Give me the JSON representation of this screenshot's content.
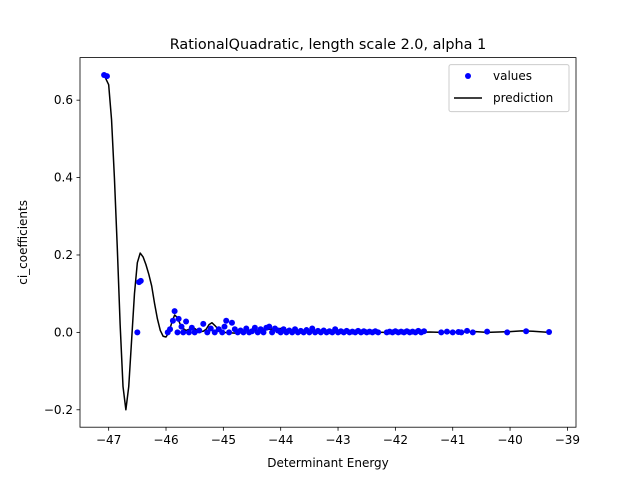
{
  "chart_data": {
    "type": "scatter",
    "title": "RationalQuadratic, length scale 2.0, alpha 1",
    "xlabel": "Determinant Energy",
    "ylabel": "ci_coefficients",
    "xlim": [
      -47.5,
      -38.85
    ],
    "ylim": [
      -0.245,
      0.71
    ],
    "grid": false,
    "legend_position": "top-right",
    "x_ticks": [
      -47,
      -46,
      -45,
      -44,
      -43,
      -42,
      -41,
      -40,
      -39
    ],
    "x_tick_labels": [
      "−47",
      "−46",
      "−45",
      "−44",
      "−43",
      "−42",
      "−41",
      "−40",
      "−39"
    ],
    "y_ticks": [
      -0.2,
      0.0,
      0.2,
      0.4,
      0.6
    ],
    "y_tick_labels": [
      "−0.2",
      "0.0",
      "0.2",
      "0.4",
      "0.6"
    ],
    "series": [
      {
        "name": "values",
        "kind": "points",
        "color": "#0000ff",
        "x": [
          -47.08,
          -47.03,
          -46.5,
          -46.47,
          -46.44,
          -45.97,
          -45.93,
          -45.88,
          -45.85,
          -45.8,
          -45.78,
          -45.73,
          -45.7,
          -45.65,
          -45.6,
          -45.55,
          -45.5,
          -45.42,
          -45.35,
          -45.28,
          -45.22,
          -45.15,
          -45.08,
          -45.02,
          -44.98,
          -44.95,
          -44.9,
          -44.85,
          -44.8,
          -44.75,
          -44.7,
          -44.65,
          -44.6,
          -44.55,
          -44.5,
          -44.45,
          -44.4,
          -44.35,
          -44.3,
          -44.25,
          -44.2,
          -44.15,
          -44.1,
          -44.05,
          -44.0,
          -43.95,
          -43.9,
          -43.85,
          -43.8,
          -43.75,
          -43.7,
          -43.65,
          -43.6,
          -43.55,
          -43.5,
          -43.45,
          -43.4,
          -43.35,
          -43.3,
          -43.25,
          -43.2,
          -43.15,
          -43.1,
          -43.05,
          -43.0,
          -42.95,
          -42.9,
          -42.85,
          -42.8,
          -42.75,
          -42.7,
          -42.65,
          -42.6,
          -42.55,
          -42.5,
          -42.45,
          -42.4,
          -42.35,
          -42.3,
          -42.15,
          -42.1,
          -42.05,
          -42.0,
          -41.95,
          -41.9,
          -41.85,
          -41.8,
          -41.75,
          -41.7,
          -41.65,
          -41.6,
          -41.55,
          -41.5,
          -41.2,
          -41.1,
          -41.0,
          -40.9,
          -40.85,
          -40.75,
          -40.65,
          -40.4,
          -40.05,
          -39.72,
          -39.32
        ],
        "y": [
          0.665,
          0.662,
          0.0,
          0.13,
          0.133,
          0.0,
          0.008,
          0.03,
          0.055,
          0.0,
          0.035,
          0.015,
          0.0,
          0.028,
          0.0,
          0.012,
          0.0,
          0.005,
          0.022,
          0.0,
          0.01,
          0.0,
          0.008,
          0.0,
          0.015,
          0.03,
          0.0,
          0.025,
          0.008,
          0.0,
          0.005,
          0.0,
          0.01,
          0.0,
          0.003,
          0.012,
          0.0,
          0.008,
          0.0,
          0.012,
          0.015,
          0.0,
          0.01,
          0.005,
          0.0,
          0.008,
          0.0,
          0.005,
          0.0,
          0.008,
          0.0,
          0.004,
          0.0,
          0.006,
          0.0,
          0.01,
          0.0,
          0.004,
          0.0,
          0.005,
          0.0,
          0.003,
          0.0,
          0.008,
          0.0,
          0.003,
          0.0,
          0.004,
          0.0,
          0.002,
          0.0,
          0.004,
          0.0,
          0.003,
          0.0,
          0.002,
          0.0,
          0.003,
          0.0,
          0.0,
          0.002,
          0.0,
          0.003,
          0.0,
          0.002,
          0.0,
          0.003,
          0.0,
          0.002,
          0.0,
          0.004,
          0.0,
          0.003,
          0.0,
          0.002,
          0.0,
          0.001,
          0.0,
          0.004,
          0.0,
          0.002,
          0.0,
          0.003,
          0.001
        ]
      },
      {
        "name": "prediction",
        "kind": "line",
        "color": "#000000",
        "x": [
          -47.08,
          -47.0,
          -46.95,
          -46.9,
          -46.85,
          -46.8,
          -46.75,
          -46.7,
          -46.65,
          -46.6,
          -46.55,
          -46.5,
          -46.45,
          -46.4,
          -46.35,
          -46.3,
          -46.25,
          -46.2,
          -46.15,
          -46.1,
          -46.05,
          -46.0,
          -45.95,
          -45.9,
          -45.85,
          -45.8,
          -45.75,
          -45.7,
          -45.65,
          -45.6,
          -45.55,
          -45.5,
          -45.45,
          -45.4,
          -45.35,
          -45.3,
          -45.25,
          -45.2,
          -45.15,
          -45.1,
          -45.05,
          -45.0,
          -44.8,
          -44.6,
          -44.4,
          -44.2,
          -44.0,
          -43.8,
          -43.6,
          -43.4,
          -43.2,
          -43.0,
          -42.8,
          -42.6,
          -42.4,
          -42.2,
          -42.0,
          -41.8,
          -41.6,
          -41.4,
          -41.2,
          -41.0,
          -40.8,
          -40.6,
          -40.4,
          -40.2,
          -40.0,
          -39.8,
          -39.6,
          -39.32
        ],
        "y": [
          0.665,
          0.64,
          0.55,
          0.4,
          0.22,
          0.02,
          -0.14,
          -0.2,
          -0.14,
          -0.02,
          0.1,
          0.18,
          0.205,
          0.195,
          0.175,
          0.15,
          0.12,
          0.075,
          0.035,
          0.005,
          -0.01,
          -0.012,
          0.0,
          0.025,
          0.045,
          0.038,
          0.02,
          0.01,
          0.005,
          0.008,
          0.01,
          0.01,
          0.005,
          0.002,
          0.003,
          0.008,
          0.02,
          0.025,
          0.018,
          0.01,
          0.004,
          0.0,
          -0.002,
          0.004,
          0.005,
          0.008,
          0.01,
          0.004,
          0.002,
          0.001,
          0.0,
          0.0,
          -0.001,
          0.0,
          0.001,
          0.0,
          0.0,
          -0.001,
          0.0,
          0.001,
          0.0,
          0.0,
          0.001,
          0.002,
          0.0,
          0.001,
          0.002,
          0.004,
          0.003,
          0.0
        ]
      }
    ]
  }
}
